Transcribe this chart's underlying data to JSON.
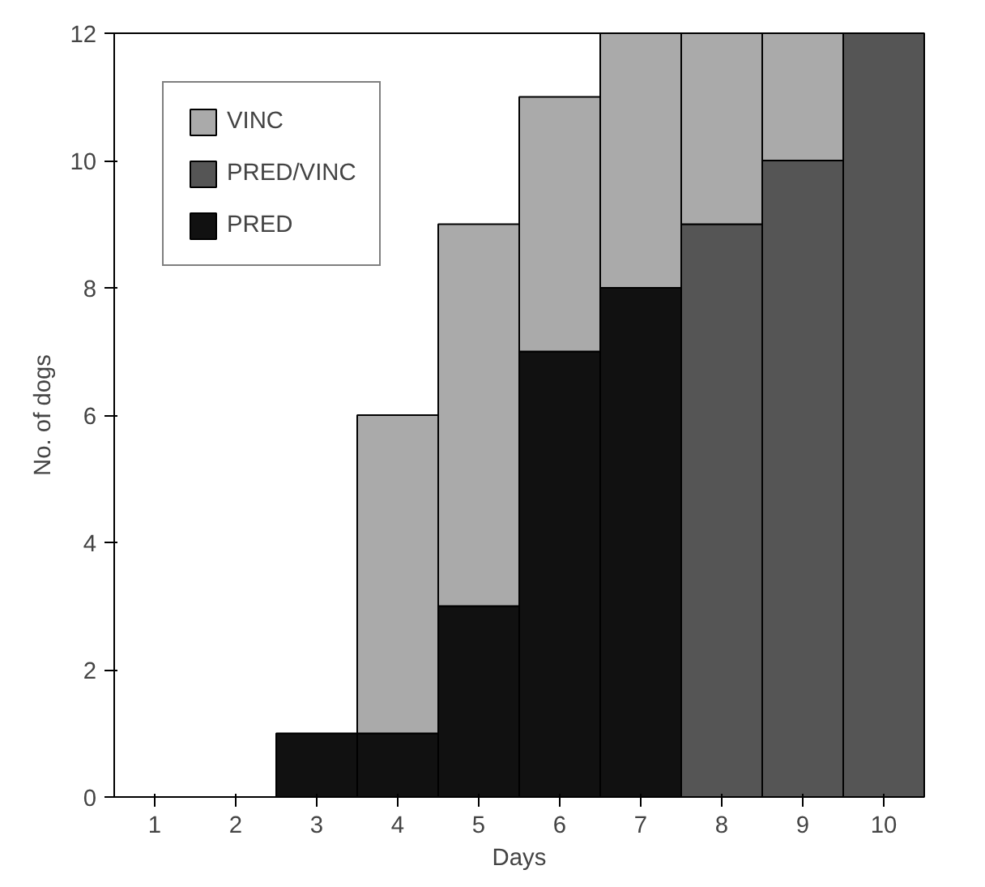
{
  "chart_data": {
    "type": "bar",
    "stacked": true,
    "xlabel": "Days",
    "ylabel": "No. of dogs",
    "categories": [
      "1",
      "2",
      "3",
      "4",
      "5",
      "6",
      "7",
      "8",
      "9",
      "10"
    ],
    "series": [
      {
        "name": "PRED",
        "color": "#111111",
        "values": [
          0,
          0,
          1,
          1,
          3,
          7,
          8,
          0,
          0,
          0
        ]
      },
      {
        "name": "PRED/VINC",
        "color": "#555555",
        "values": [
          0,
          0,
          0,
          0,
          0,
          0,
          0,
          9,
          10,
          12
        ]
      },
      {
        "name": "VINC",
        "color": "#aaaaaa",
        "values": [
          0,
          0,
          0,
          5,
          6,
          4,
          4,
          3,
          2,
          0
        ]
      }
    ],
    "ylim": [
      0,
      12
    ],
    "yticks": [
      0,
      2,
      4,
      6,
      8,
      10,
      12
    ],
    "grid": false,
    "legend": "top left"
  }
}
